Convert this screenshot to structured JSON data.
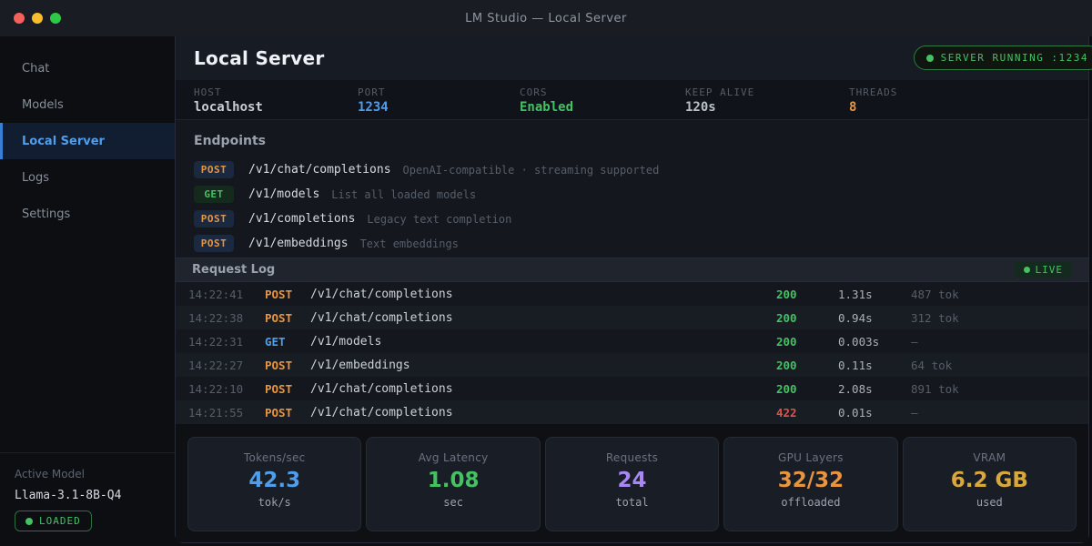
{
  "titlebar": {
    "title": "LM Studio  —  Local Server"
  },
  "sidebar": {
    "items": [
      {
        "label": "Chat",
        "active": false
      },
      {
        "label": "Models",
        "active": false
      },
      {
        "label": "Local Server",
        "active": true
      },
      {
        "label": "Logs",
        "active": false
      },
      {
        "label": "Settings",
        "active": false
      }
    ],
    "active_model": {
      "label": "Active Model",
      "name": "Llama-3.1-8B-Q4",
      "status": "LOADED"
    }
  },
  "header": {
    "title": "Local Server",
    "server_badge": {
      "label": "SERVER RUNNING",
      "port": ":1234"
    }
  },
  "config": {
    "items": [
      {
        "label": "HOST",
        "value": "localhost",
        "color": "#c9ced6"
      },
      {
        "label": "PORT",
        "value": "1234",
        "color": "#4f9eeb"
      },
      {
        "label": "CORS",
        "value": "Enabled",
        "color": "#43c163"
      },
      {
        "label": "KEEP ALIVE",
        "value": "120s",
        "color": "#b9c0c9"
      },
      {
        "label": "THREADS",
        "value": "8",
        "color": "#e79540"
      }
    ]
  },
  "endpoints": {
    "title": "Endpoints",
    "items": [
      {
        "method": "POST",
        "path": "/v1/chat/completions",
        "desc": "OpenAI-compatible · streaming supported"
      },
      {
        "method": "GET",
        "path": "/v1/models",
        "desc": "List all loaded models"
      },
      {
        "method": "POST",
        "path": "/v1/completions",
        "desc": "Legacy text completion"
      },
      {
        "method": "POST",
        "path": "/v1/embeddings",
        "desc": "Text embeddings"
      }
    ]
  },
  "request_log": {
    "title": "Request Log",
    "live_badge": "LIVE",
    "rows": [
      {
        "time": "14:22:41",
        "method": "POST",
        "path": "/v1/chat/completions",
        "status": "200",
        "latency": "1.31s",
        "tokens": "487 tok"
      },
      {
        "time": "14:22:38",
        "method": "POST",
        "path": "/v1/chat/completions",
        "status": "200",
        "latency": "0.94s",
        "tokens": "312 tok"
      },
      {
        "time": "14:22:31",
        "method": "GET",
        "path": "/v1/models",
        "status": "200",
        "latency": "0.003s",
        "tokens": "—"
      },
      {
        "time": "14:22:27",
        "method": "POST",
        "path": "/v1/embeddings",
        "status": "200",
        "latency": "0.11s",
        "tokens": "64 tok"
      },
      {
        "time": "14:22:10",
        "method": "POST",
        "path": "/v1/chat/completions",
        "status": "200",
        "latency": "2.08s",
        "tokens": "891 tok"
      },
      {
        "time": "14:21:55",
        "method": "POST",
        "path": "/v1/chat/completions",
        "status": "422",
        "latency": "0.01s",
        "tokens": "—"
      }
    ]
  },
  "stats": {
    "cards": [
      {
        "label": "Tokens/sec",
        "value": "42.3",
        "sub": "tok/s",
        "color": "#4f9eeb"
      },
      {
        "label": "Avg Latency",
        "value": "1.08",
        "sub": "sec",
        "color": "#43c163"
      },
      {
        "label": "Requests",
        "value": "24",
        "sub": "total",
        "color": "#a887f5"
      },
      {
        "label": "GPU Layers",
        "value": "32/32",
        "sub": "offloaded",
        "color": "#e79540"
      },
      {
        "label": "VRAM",
        "value": "6.2 GB",
        "sub": "used",
        "color": "#d9a83c"
      }
    ]
  },
  "colors": {
    "accent_blue": "#4f9eeb",
    "green": "#43c163",
    "orange": "#e79540",
    "red": "#e0524e",
    "purple": "#a887f5",
    "gold": "#d9a83c"
  }
}
